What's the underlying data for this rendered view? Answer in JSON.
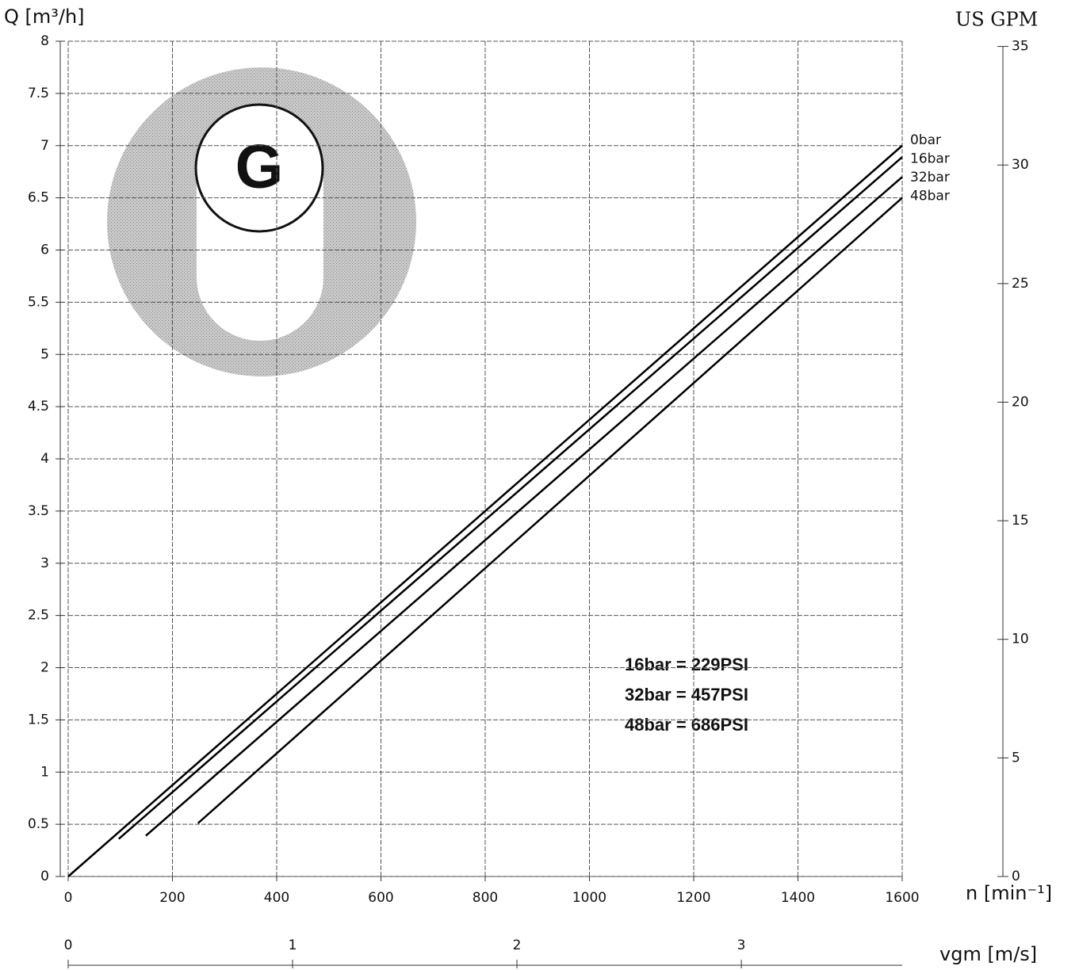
{
  "chart_data": {
    "type": "line",
    "logo": "G",
    "y_label": "Q [m³/h]",
    "y2_label": "US GPM",
    "x_label": "n [min⁻¹]",
    "x2_label": "vgm [m/s]",
    "xlim": [
      0,
      1600
    ],
    "xticks": [
      0,
      200,
      400,
      600,
      800,
      1000,
      1200,
      1400,
      1600
    ],
    "ylim": [
      0,
      8
    ],
    "yticks": [
      0,
      0.5,
      1,
      1.5,
      2,
      2.5,
      3,
      3.5,
      4,
      4.5,
      5,
      5.5,
      6,
      6.5,
      7,
      7.5,
      8
    ],
    "y2lim": [
      0,
      35.22
    ],
    "y2ticks": [
      0,
      5,
      10,
      15,
      20,
      25,
      30,
      35
    ],
    "x2lim": [
      0,
      3.717
    ],
    "x2ticks": [
      0,
      1,
      2,
      3
    ],
    "grid": true,
    "series": [
      {
        "name": "0bar",
        "color": "#000000",
        "x": [
          0,
          1600
        ],
        "values": [
          0,
          7.0
        ]
      },
      {
        "name": "16bar",
        "color": "#000000",
        "x": [
          97,
          1600
        ],
        "values": [
          0.36,
          6.89
        ]
      },
      {
        "name": "32bar",
        "color": "#000000",
        "x": [
          149,
          1600
        ],
        "values": [
          0.39,
          6.7
        ]
      },
      {
        "name": "48bar",
        "color": "#000000",
        "x": [
          249,
          1600
        ],
        "values": [
          0.51,
          6.5
        ]
      }
    ],
    "annotations": [
      "16bar = 229PSI",
      "32bar = 457PSI",
      "48bar = 686PSI"
    ]
  }
}
